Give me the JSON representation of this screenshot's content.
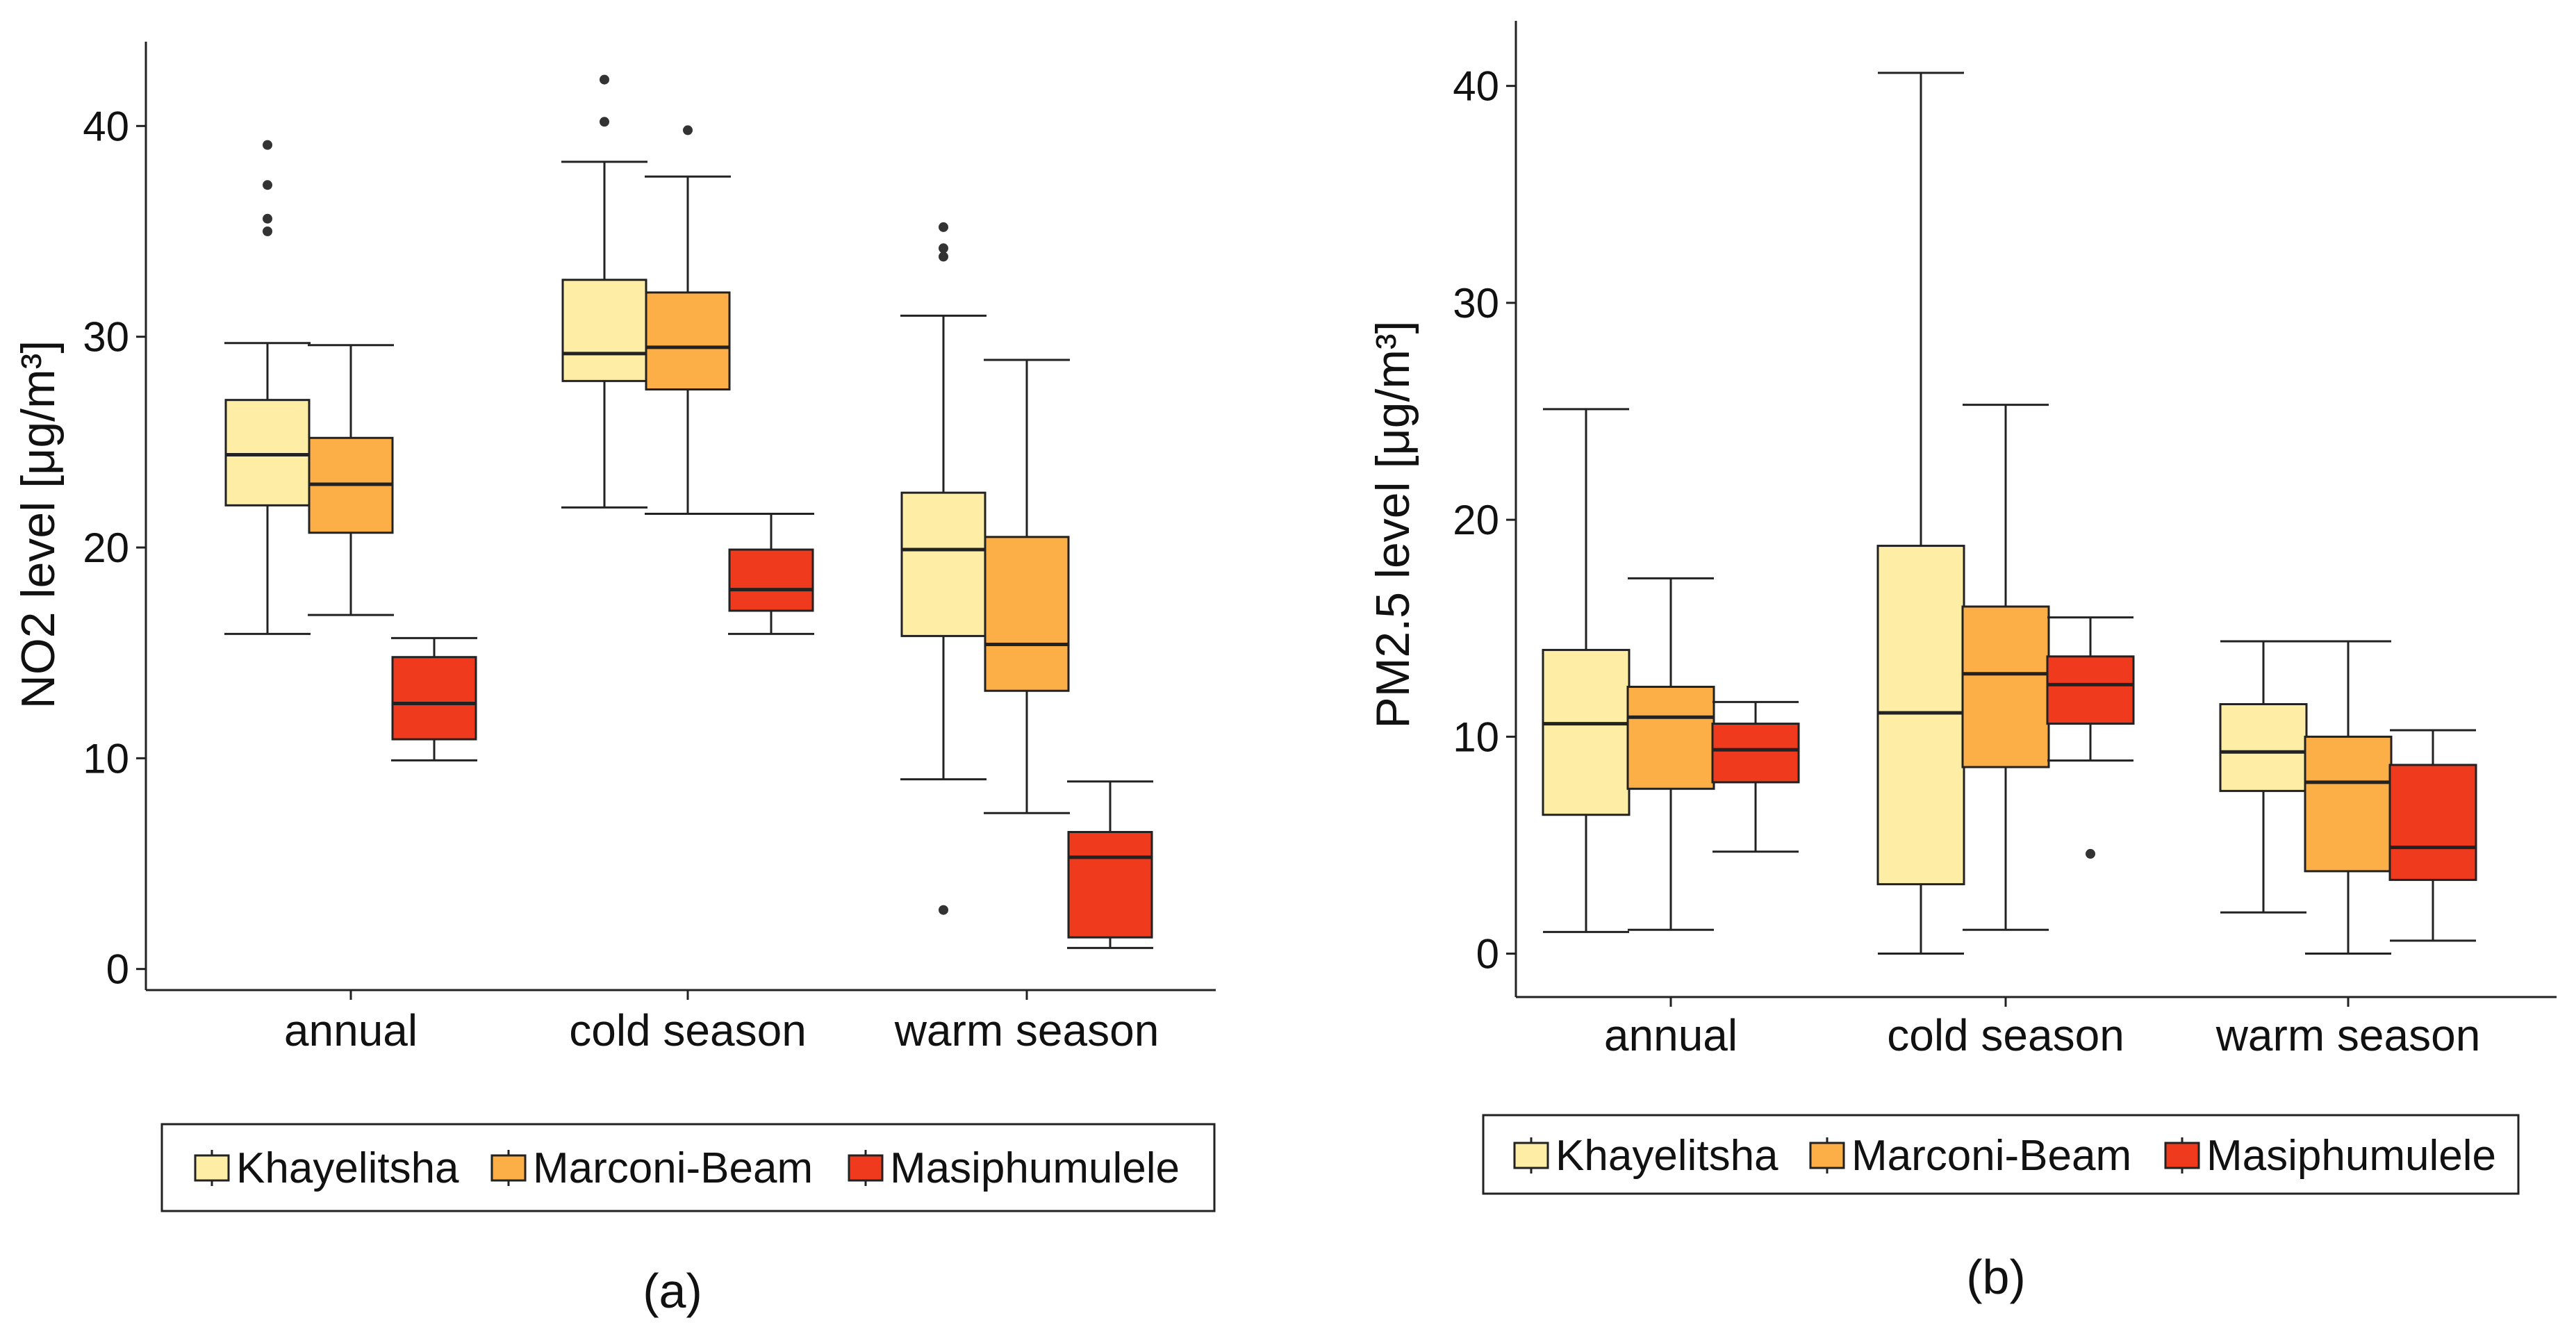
{
  "colors": {
    "Khayelitsha": "#FDEDA5",
    "Marconi-Beam": "#FCAE47",
    "Masiphumulele": "#F03A1E",
    "line": "#222222",
    "outlier": "#333333"
  },
  "chart_data": [
    {
      "type": "boxplot",
      "panel_label": "(a)",
      "title": "",
      "xlabel": "",
      "ylabel": "NO2 level [μg/m³]",
      "ylim": [
        -1,
        44
      ],
      "yticks": [
        "0",
        "10",
        "20",
        "30",
        "40"
      ],
      "categories": [
        "annual",
        "cold season",
        "warm season"
      ],
      "legend": [
        "Khayelitsha",
        "Marconi-Beam",
        "Masiphumulele"
      ],
      "legend_position": "bottom",
      "series": [
        {
          "name": "Khayelitsha",
          "boxes": [
            {
              "min": 15.9,
              "q1": 22.0,
              "median": 24.4,
              "q3": 27.0,
              "max": 29.7,
              "outliers": [
                35.0,
                35.6,
                37.2,
                39.1
              ]
            },
            {
              "min": 21.9,
              "q1": 27.9,
              "median": 29.2,
              "q3": 32.7,
              "max": 38.3,
              "outliers": [
                40.2,
                42.2
              ]
            },
            {
              "min": 9.0,
              "q1": 15.8,
              "median": 19.9,
              "q3": 22.6,
              "max": 31.0,
              "outliers": [
                2.8,
                33.8,
                34.2,
                35.2
              ]
            }
          ]
        },
        {
          "name": "Marconi-Beam",
          "boxes": [
            {
              "min": 16.8,
              "q1": 20.7,
              "median": 23.0,
              "q3": 25.2,
              "max": 29.6,
              "outliers": []
            },
            {
              "min": 21.6,
              "q1": 27.5,
              "median": 29.5,
              "q3": 32.1,
              "max": 37.6,
              "outliers": [
                39.8
              ]
            },
            {
              "min": 7.4,
              "q1": 13.2,
              "median": 15.4,
              "q3": 20.5,
              "max": 28.9,
              "outliers": []
            }
          ]
        },
        {
          "name": "Masiphumulele",
          "boxes": [
            {
              "min": 9.9,
              "q1": 10.9,
              "median": 12.6,
              "q3": 14.8,
              "max": 15.7,
              "outliers": []
            },
            {
              "min": 15.9,
              "q1": 17.0,
              "median": 18.0,
              "q3": 19.9,
              "max": 21.6,
              "outliers": []
            },
            {
              "min": 1.0,
              "q1": 1.5,
              "median": 5.3,
              "q3": 6.5,
              "max": 8.9,
              "outliers": []
            }
          ]
        }
      ]
    },
    {
      "type": "boxplot",
      "panel_label": "(b)",
      "title": "",
      "xlabel": "",
      "ylabel": "PM2.5 level [μg/m³]",
      "ylim": [
        -2,
        43
      ],
      "yticks": [
        "0",
        "10",
        "20",
        "30",
        "40"
      ],
      "categories": [
        "annual",
        "cold season",
        "warm season"
      ],
      "legend": [
        "Khayelitsha",
        "Marconi-Beam",
        "Masiphumulele"
      ],
      "legend_position": "bottom",
      "series": [
        {
          "name": "Khayelitsha",
          "boxes": [
            {
              "min": 1.0,
              "q1": 6.4,
              "median": 10.6,
              "q3": 14.0,
              "max": 25.1,
              "outliers": []
            },
            {
              "min": 0.0,
              "q1": 3.2,
              "median": 11.1,
              "q3": 18.8,
              "max": 40.6,
              "outliers": []
            },
            {
              "min": 1.9,
              "q1": 7.5,
              "median": 9.3,
              "q3": 11.5,
              "max": 14.4,
              "outliers": []
            }
          ]
        },
        {
          "name": "Marconi-Beam",
          "boxes": [
            {
              "min": 1.1,
              "q1": 7.6,
              "median": 10.9,
              "q3": 12.3,
              "max": 17.3,
              "outliers": []
            },
            {
              "min": 1.1,
              "q1": 8.6,
              "median": 12.9,
              "q3": 16.0,
              "max": 25.3,
              "outliers": []
            },
            {
              "min": 0.0,
              "q1": 3.8,
              "median": 7.9,
              "q3": 10.0,
              "max": 14.4,
              "outliers": []
            }
          ]
        },
        {
          "name": "Masiphumulele",
          "boxes": [
            {
              "min": 4.7,
              "q1": 7.9,
              "median": 9.4,
              "q3": 10.6,
              "max": 11.6,
              "outliers": []
            },
            {
              "min": 8.9,
              "q1": 10.6,
              "median": 12.4,
              "q3": 13.7,
              "max": 15.5,
              "outliers": [
                4.6
              ]
            },
            {
              "min": 0.6,
              "q1": 3.4,
              "median": 4.9,
              "q3": 8.7,
              "max": 10.3,
              "outliers": []
            }
          ]
        }
      ]
    }
  ]
}
